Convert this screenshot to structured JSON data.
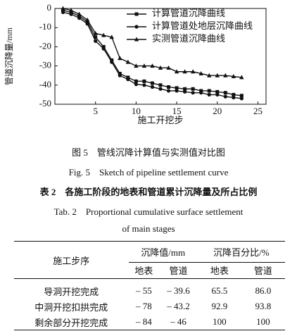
{
  "chart_data": {
    "type": "line",
    "y_label": "管道沉降量/mm",
    "x_label": "施工开挖步",
    "x": [
      1,
      2,
      3,
      4,
      5,
      6,
      7,
      8,
      9,
      10,
      11,
      12,
      13,
      14,
      15,
      16,
      17,
      18,
      19,
      20,
      21,
      22,
      23
    ],
    "xlim": [
      0,
      26
    ],
    "xticks": [
      5,
      10,
      15,
      20,
      25
    ],
    "ylim": [
      -50,
      0
    ],
    "yticks": [
      0,
      -10,
      -20,
      -30,
      -40,
      -50
    ],
    "legend": "upper right",
    "series": [
      {
        "name": "计算管道沉降曲线",
        "color": "#111",
        "marker": "square",
        "values": [
          -1,
          -2,
          -4,
          -7,
          -15,
          -20,
          -27,
          -34,
          -36,
          -38,
          -38,
          -39,
          -40,
          -41,
          -41.5,
          -42,
          -42,
          -43,
          -43,
          -43.5,
          -44,
          -45,
          -45.5
        ]
      },
      {
        "name": "计算管道处地层沉降曲线",
        "color": "#111",
        "marker": "circle",
        "values": [
          -2,
          -3,
          -5,
          -8,
          -17,
          -21,
          -28,
          -35,
          -37,
          -39.6,
          -40,
          -41,
          -42,
          -43,
          -43,
          -43.5,
          -44,
          -44,
          -45,
          -45,
          -46,
          -46.5,
          -47
        ]
      },
      {
        "name": "实测管道沉降曲线",
        "color": "#111",
        "marker": "triangle",
        "values": [
          0,
          -1,
          -3,
          -6,
          -13,
          -14,
          -15,
          -26,
          -28,
          -30,
          -30,
          -30,
          -31,
          -31,
          -33,
          -33,
          -33,
          -34,
          -35,
          -35,
          -35,
          -35.5,
          -36
        ]
      }
    ]
  },
  "figure": {
    "caption_cn": "图 5　管线沉降计算值与实测值对比图",
    "caption_en": "Fig. 5　Sketch of pipeline settlement curve"
  },
  "table": {
    "caption_cn": "表 2　各施工阶段的地表和管道累计沉降量及所占比例",
    "caption_en": [
      "Tab. 2　Proportional cumulative surface settlement",
      "of main stages"
    ],
    "header": [
      "施工步序",
      "沉降值/mm",
      "沉降百分比/%"
    ],
    "subheader": [
      "地表",
      "管道",
      "地表",
      "管道"
    ],
    "rows": [
      [
        "导洞开挖完成",
        "– 55",
        "– 39.6",
        "65.5",
        "86.0"
      ],
      [
        "中洞开挖扣拱完成",
        "– 78",
        "– 43.2",
        "92.9",
        "93.8"
      ],
      [
        "剩余部分开挖完成",
        "– 84",
        "– 46",
        "100",
        "100"
      ]
    ]
  }
}
